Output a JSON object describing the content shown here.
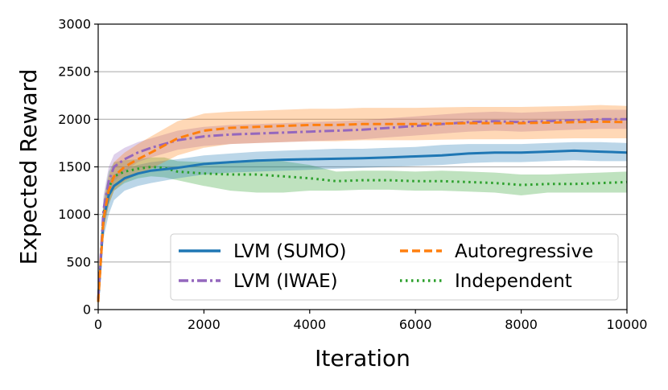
{
  "chart_data": {
    "type": "line",
    "title": "",
    "xlabel": "Iteration",
    "ylabel": "Expected Reward",
    "xlim": [
      0,
      10000
    ],
    "ylim": [
      0,
      3000
    ],
    "xticks": [
      0,
      2000,
      4000,
      6000,
      8000,
      10000
    ],
    "yticks": [
      0,
      500,
      1000,
      1500,
      2000,
      2500,
      3000
    ],
    "xtick_labels": [
      "0",
      "2000",
      "4000",
      "6000",
      "8000",
      "10000"
    ],
    "ytick_labels": [
      "0",
      "500",
      "1000",
      "1500",
      "2000",
      "2500",
      "3000"
    ],
    "grid": "horizontal",
    "legend_position": "lower-right",
    "series": [
      {
        "name": "LVM (SUMO)",
        "color": "#1f77b4",
        "style": "solid",
        "x": [
          0,
          100,
          200,
          300,
          500,
          750,
          1000,
          1500,
          2000,
          2500,
          3000,
          3500,
          4000,
          4500,
          5000,
          5500,
          6000,
          6500,
          7000,
          7500,
          8000,
          8500,
          9000,
          9500,
          10000
        ],
        "y": [
          100,
          950,
          1200,
          1300,
          1380,
          1430,
          1460,
          1490,
          1530,
          1550,
          1565,
          1575,
          1580,
          1585,
          1590,
          1600,
          1610,
          1620,
          1640,
          1650,
          1650,
          1660,
          1670,
          1660,
          1650
        ],
        "band_low": [
          50,
          750,
          1000,
          1150,
          1250,
          1300,
          1330,
          1380,
          1420,
          1440,
          1450,
          1460,
          1470,
          1480,
          1490,
          1500,
          1510,
          1520,
          1540,
          1550,
          1550,
          1560,
          1570,
          1560,
          1560
        ],
        "band_high": [
          150,
          1100,
          1350,
          1420,
          1480,
          1520,
          1550,
          1580,
          1620,
          1640,
          1660,
          1670,
          1680,
          1690,
          1690,
          1700,
          1710,
          1730,
          1740,
          1740,
          1740,
          1750,
          1760,
          1760,
          1750
        ]
      },
      {
        "name": "LVM (IWAE)",
        "color": "#9467bd",
        "style": "dashdot",
        "x": [
          0,
          100,
          200,
          300,
          500,
          750,
          1000,
          1500,
          2000,
          2500,
          3000,
          3500,
          4000,
          4500,
          5000,
          5500,
          6000,
          6500,
          7000,
          7500,
          8000,
          8500,
          9000,
          9500,
          10000
        ],
        "y": [
          100,
          1050,
          1350,
          1500,
          1580,
          1650,
          1700,
          1780,
          1820,
          1840,
          1850,
          1860,
          1870,
          1880,
          1890,
          1910,
          1930,
          1950,
          1970,
          1980,
          1970,
          1980,
          1990,
          2000,
          2000
        ],
        "band_low": [
          50,
          900,
          1200,
          1350,
          1450,
          1550,
          1600,
          1680,
          1720,
          1740,
          1750,
          1760,
          1770,
          1780,
          1790,
          1810,
          1830,
          1850,
          1870,
          1880,
          1870,
          1880,
          1890,
          1900,
          1900
        ],
        "band_high": [
          150,
          1200,
          1500,
          1630,
          1700,
          1760,
          1800,
          1880,
          1920,
          1940,
          1950,
          1960,
          1970,
          1980,
          1990,
          2010,
          2030,
          2050,
          2070,
          2080,
          2070,
          2080,
          2090,
          2100,
          2100
        ]
      },
      {
        "name": "Autoregressive",
        "color": "#ff7f0e",
        "style": "dashed",
        "x": [
          0,
          100,
          200,
          300,
          500,
          750,
          1000,
          1500,
          2000,
          2500,
          3000,
          3500,
          4000,
          4500,
          5000,
          5500,
          6000,
          6500,
          7000,
          7500,
          8000,
          8500,
          9000,
          9500,
          10000
        ],
        "y": [
          80,
          950,
          1250,
          1400,
          1500,
          1580,
          1650,
          1800,
          1880,
          1910,
          1920,
          1930,
          1940,
          1940,
          1950,
          1950,
          1950,
          1955,
          1960,
          1960,
          1960,
          1965,
          1970,
          1975,
          1970
        ],
        "band_low": [
          30,
          800,
          1100,
          1250,
          1350,
          1420,
          1480,
          1620,
          1700,
          1740,
          1750,
          1760,
          1770,
          1770,
          1780,
          1780,
          1780,
          1785,
          1790,
          1790,
          1790,
          1795,
          1800,
          1800,
          1800
        ],
        "band_high": [
          130,
          1100,
          1400,
          1550,
          1650,
          1740,
          1820,
          1980,
          2060,
          2080,
          2090,
          2100,
          2110,
          2110,
          2120,
          2120,
          2120,
          2125,
          2130,
          2130,
          2130,
          2135,
          2140,
          2150,
          2140
        ]
      },
      {
        "name": "Independent",
        "color": "#2ca02c",
        "style": "dotted",
        "x": [
          0,
          100,
          200,
          300,
          500,
          750,
          1000,
          1250,
          1500,
          2000,
          2500,
          3000,
          3500,
          4000,
          4500,
          5000,
          5500,
          6000,
          6500,
          7000,
          7500,
          8000,
          8500,
          9000,
          9500,
          10000
        ],
        "y": [
          80,
          1000,
          1280,
          1400,
          1450,
          1480,
          1500,
          1490,
          1450,
          1430,
          1420,
          1420,
          1400,
          1380,
          1350,
          1360,
          1360,
          1350,
          1350,
          1340,
          1330,
          1310,
          1320,
          1320,
          1330,
          1340
        ],
        "band_low": [
          30,
          850,
          1100,
          1250,
          1330,
          1380,
          1400,
          1390,
          1360,
          1300,
          1250,
          1230,
          1230,
          1250,
          1250,
          1260,
          1260,
          1250,
          1250,
          1240,
          1230,
          1200,
          1230,
          1230,
          1230,
          1230
        ],
        "band_high": [
          130,
          1150,
          1450,
          1550,
          1570,
          1580,
          1600,
          1600,
          1560,
          1550,
          1560,
          1580,
          1560,
          1520,
          1450,
          1460,
          1460,
          1450,
          1460,
          1450,
          1440,
          1420,
          1420,
          1430,
          1440,
          1450
        ]
      }
    ]
  }
}
